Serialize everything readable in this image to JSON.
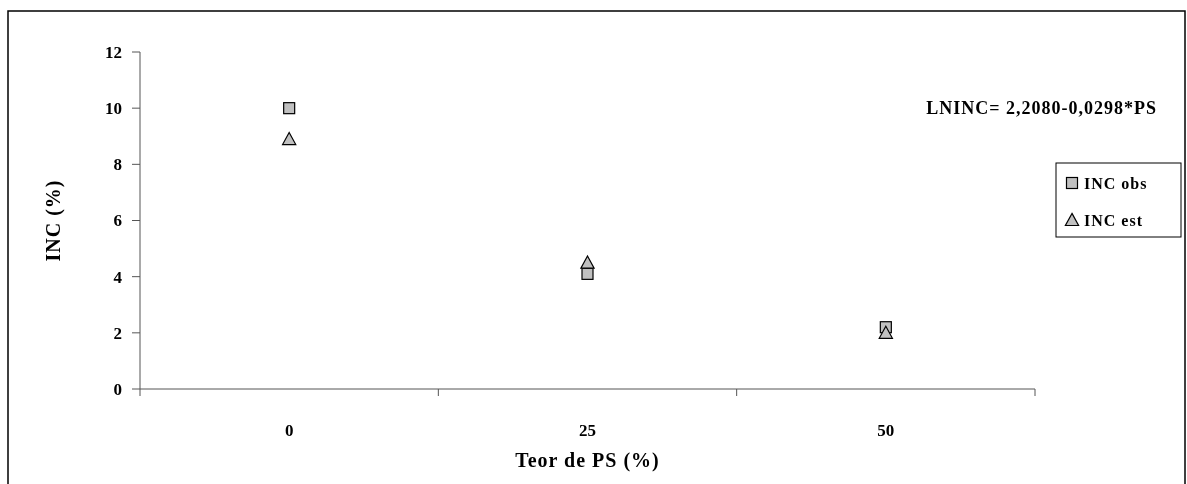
{
  "chart_data": {
    "type": "scatter",
    "xlabel": "Teor de PS (%)",
    "ylabel": "INC (%)",
    "categories": [
      "0",
      "25",
      "50"
    ],
    "ylim": [
      0,
      12
    ],
    "yticks": [
      0,
      2,
      4,
      6,
      8,
      10,
      12
    ],
    "legend": "right",
    "annotations": [
      "LNINC= 2,2080-0,0298*PS"
    ],
    "series": [
      {
        "name": "INC obs",
        "color": "#c0c0c0",
        "marker": "square",
        "values": [
          10.0,
          4.1,
          2.2
        ]
      },
      {
        "name": "INC est",
        "color": "#c0c0c0",
        "marker": "triangle",
        "values": [
          8.9,
          4.5,
          2.0
        ]
      }
    ]
  }
}
